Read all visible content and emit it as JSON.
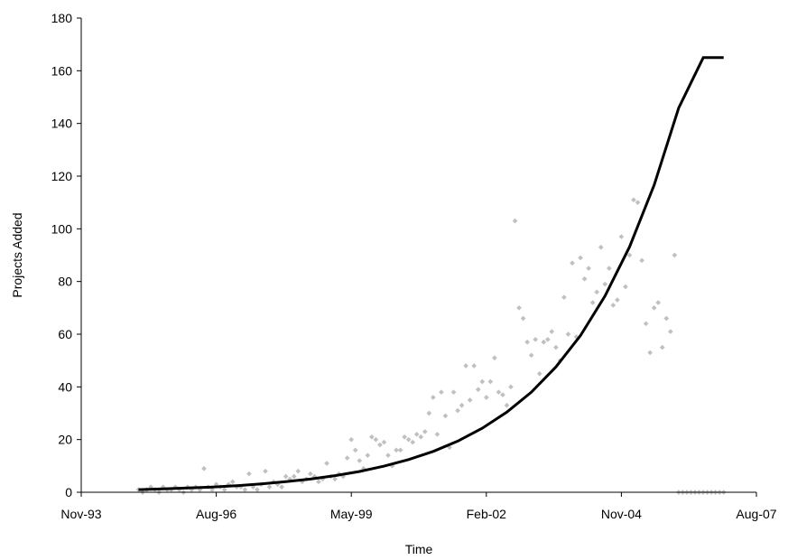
{
  "chart_data": {
    "type": "scatter",
    "title": "",
    "xlabel": "Time",
    "ylabel": "Projects Added",
    "xlim": [
      "1993-11-01",
      "2007-08-01"
    ],
    "ylim": [
      0,
      180
    ],
    "x_tick_labels": [
      "Nov-93",
      "Aug-96",
      "May-99",
      "Feb-02",
      "Nov-04",
      "Aug-07"
    ],
    "x_tick_dates": [
      "1993-11-01",
      "1996-08-01",
      "1999-05-01",
      "2002-02-01",
      "2004-11-01",
      "2007-08-01"
    ],
    "y_ticks": [
      0,
      20,
      40,
      60,
      80,
      100,
      120,
      140,
      160,
      180
    ],
    "grid": false,
    "legend": "none",
    "colors": {
      "points": "#c0c0c0",
      "trend": "#000000",
      "axis": "#000000"
    },
    "series": [
      {
        "kind": "points",
        "x": [
          "1995-01",
          "1995-02",
          "1995-03",
          "1995-04",
          "1995-05",
          "1995-06",
          "1995-07",
          "1995-08",
          "1995-09",
          "1995-10",
          "1995-11",
          "1995-12",
          "1996-01",
          "1996-02",
          "1996-03",
          "1996-04",
          "1996-05",
          "1996-06",
          "1996-07",
          "1996-08",
          "1996-09",
          "1996-10",
          "1996-11",
          "1996-12",
          "1997-01",
          "1997-02",
          "1997-03",
          "1997-04",
          "1997-05",
          "1997-06",
          "1997-07",
          "1997-08",
          "1997-09",
          "1997-10",
          "1997-11",
          "1997-12",
          "1998-01",
          "1998-02",
          "1998-03",
          "1998-04",
          "1998-05",
          "1998-06",
          "1998-07",
          "1998-08",
          "1998-09",
          "1998-10",
          "1998-11",
          "1998-12",
          "1999-01",
          "1999-02",
          "1999-03",
          "1999-04",
          "1999-05",
          "1999-06",
          "1999-07",
          "1999-08",
          "1999-09",
          "1999-10",
          "1999-11",
          "1999-12",
          "2000-01",
          "2000-02",
          "2000-03",
          "2000-04",
          "2000-05",
          "2000-06",
          "2000-07",
          "2000-08",
          "2000-09",
          "2000-10",
          "2000-11",
          "2000-12",
          "2001-01",
          "2001-02",
          "2001-03",
          "2001-04",
          "2001-05",
          "2001-06",
          "2001-07",
          "2001-08",
          "2001-09",
          "2001-10",
          "2001-11",
          "2001-12",
          "2002-01",
          "2002-02",
          "2002-03",
          "2002-04",
          "2002-05",
          "2002-06",
          "2002-07",
          "2002-08",
          "2002-09",
          "2002-10",
          "2002-11",
          "2002-12",
          "2003-01",
          "2003-02",
          "2003-03",
          "2003-04",
          "2003-05",
          "2003-06",
          "2003-07",
          "2003-08",
          "2003-09",
          "2003-10",
          "2003-11",
          "2003-12",
          "2004-01",
          "2004-02",
          "2004-03",
          "2004-04",
          "2004-05",
          "2004-06",
          "2004-07",
          "2004-08",
          "2004-09",
          "2004-10",
          "2004-11",
          "2004-12",
          "2005-01",
          "2005-02",
          "2005-03",
          "2005-04",
          "2005-05",
          "2005-06",
          "2005-07",
          "2005-08",
          "2005-09",
          "2005-10",
          "2005-11",
          "2005-12",
          "2006-01",
          "2006-02",
          "2006-03",
          "2006-04",
          "2006-05",
          "2006-06",
          "2006-07",
          "2006-08",
          "2006-09",
          "2006-10",
          "2006-11",
          "2006-12"
        ],
        "y": [
          1,
          0,
          1,
          2,
          1,
          0,
          2,
          1,
          1,
          2,
          1,
          0,
          2,
          1,
          2,
          1,
          9,
          2,
          1,
          3,
          2,
          1,
          3,
          4,
          2,
          2,
          1,
          7,
          2,
          1,
          3,
          8,
          2,
          4,
          3,
          2,
          6,
          5,
          6,
          8,
          4,
          5,
          7,
          6,
          4,
          5,
          11,
          6,
          5,
          7,
          6,
          13,
          20,
          16,
          12,
          9,
          14,
          21,
          20,
          18,
          19,
          14,
          10,
          16,
          16,
          21,
          20,
          19,
          22,
          21,
          23,
          30,
          36,
          22,
          38,
          29,
          17,
          38,
          31,
          33,
          48,
          35,
          48,
          39,
          42,
          36,
          42,
          51,
          38,
          37,
          33,
          40,
          103,
          70,
          66,
          57,
          52,
          58,
          45,
          57,
          58,
          61,
          55,
          50,
          74,
          60,
          87,
          59,
          89,
          81,
          85,
          72,
          76,
          93,
          79,
          85,
          71,
          73,
          97,
          78,
          90,
          111,
          110,
          88,
          64,
          53,
          70,
          72,
          55,
          66,
          61,
          90,
          0,
          0,
          0,
          0,
          0,
          0,
          0,
          0,
          0,
          0,
          0,
          0
        ]
      },
      {
        "kind": "trend",
        "x": [
          "1995-01",
          "1995-07",
          "1996-01",
          "1996-07",
          "1997-01",
          "1997-07",
          "1998-01",
          "1998-07",
          "1999-01",
          "1999-07",
          "2000-01",
          "2000-07",
          "2001-01",
          "2001-07",
          "2002-01",
          "2002-07",
          "2003-01",
          "2003-07",
          "2004-01",
          "2004-07",
          "2005-01",
          "2005-07",
          "2006-01",
          "2006-07",
          "2006-12"
        ],
        "y": [
          1.0,
          1.3,
          1.6,
          2.0,
          2.5,
          3.2,
          4.0,
          5.0,
          6.3,
          7.9,
          9.9,
          12.4,
          15.5,
          19.4,
          24.3,
          30.4,
          38.0,
          47.6,
          59.5,
          74.5,
          93.2,
          116.6,
          145.9,
          182.0,
          165.0
        ]
      }
    ]
  }
}
